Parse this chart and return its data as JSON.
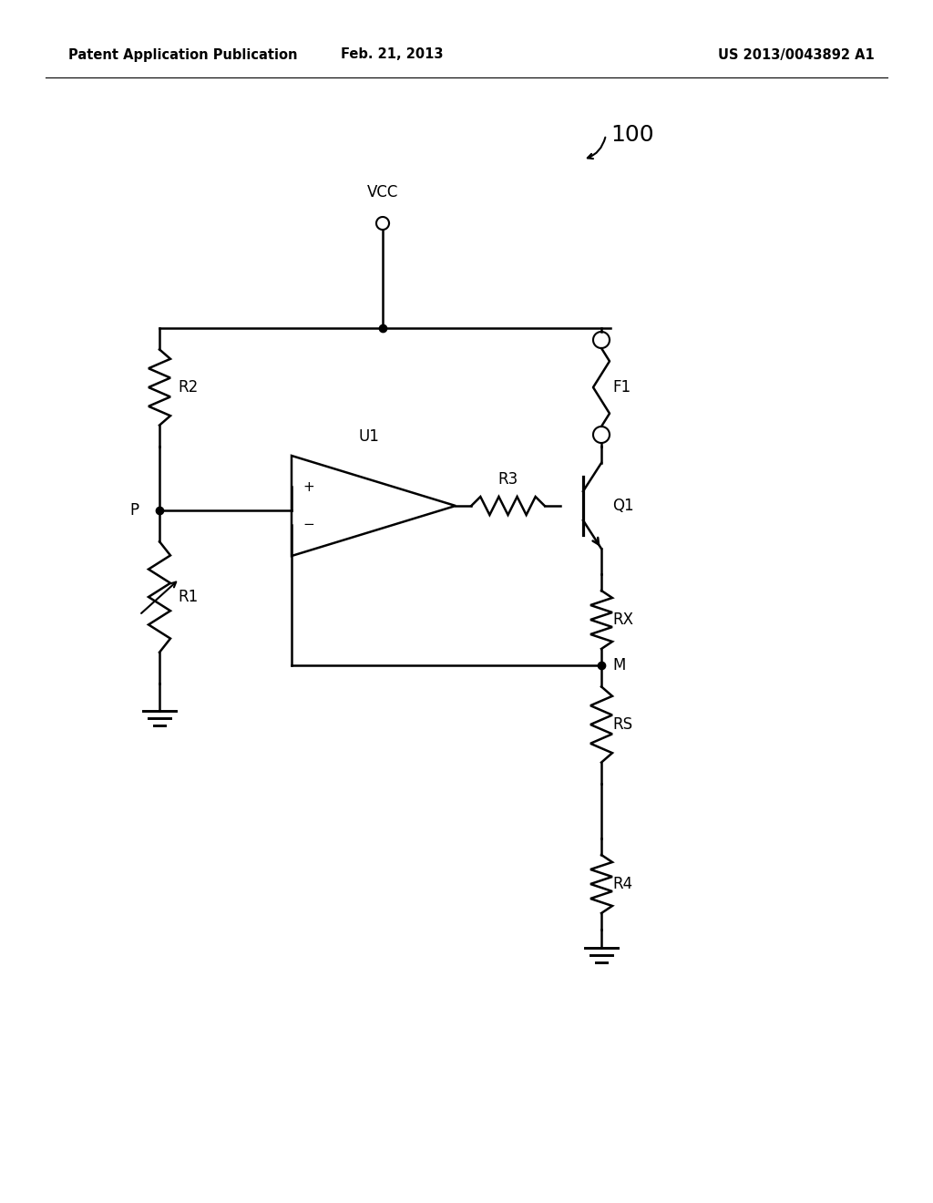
{
  "title_left": "Patent Application Publication",
  "title_center": "Feb. 21, 2013",
  "title_right": "US 2013/0043892 A1",
  "circuit_label": "100",
  "bg_color": "#ffffff",
  "line_color": "#000000",
  "line_width": 1.8,
  "font_size_header": 10.5,
  "font_size_label": 12,
  "font_size_circuit": 14
}
